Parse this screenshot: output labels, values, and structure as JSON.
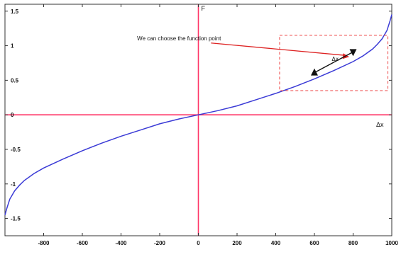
{
  "chart_data": {
    "type": "line",
    "title": "",
    "xlabel": "",
    "ylabel": "",
    "xlim": [
      -1000,
      1000
    ],
    "ylim": [
      -1.75,
      1.6
    ],
    "xticks": [
      -800,
      -600,
      -400,
      -200,
      0,
      200,
      400,
      600,
      800,
      1000
    ],
    "xtick_labels": [
      "-800",
      "-600",
      "-400",
      "-200",
      "0",
      "200",
      "400",
      "600",
      "800",
      "1000"
    ],
    "yticks": [
      -1.5,
      -1,
      -0.5,
      0,
      0.5,
      1,
      1.5
    ],
    "ytick_labels": [
      "-1.5",
      "-1",
      "-0.5",
      "0",
      "0.5",
      "1",
      "1.5"
    ],
    "grid": false,
    "series": [
      {
        "name": "",
        "color": "#3b3bd6",
        "x": [
          -1000,
          -990,
          -975,
          -950,
          -925,
          -900,
          -850,
          -800,
          -700,
          -600,
          -500,
          -400,
          -300,
          -200,
          -100,
          0,
          100,
          200,
          300,
          400,
          500,
          600,
          700,
          800,
          850,
          900,
          925,
          950,
          975,
          990,
          1000
        ],
        "y": [
          -1.45,
          -1.35,
          -1.22,
          -1.1,
          -1.02,
          -0.95,
          -0.85,
          -0.77,
          -0.64,
          -0.52,
          -0.41,
          -0.31,
          -0.22,
          -0.13,
          -0.06,
          0,
          0.06,
          0.13,
          0.22,
          0.31,
          0.41,
          0.52,
          0.64,
          0.77,
          0.85,
          0.95,
          1.02,
          1.1,
          1.22,
          1.35,
          1.45
        ]
      }
    ],
    "reference_lines": {
      "color": "#ff3366",
      "vertical_x": 0,
      "horizontal_y": 0,
      "vertical_label": "F",
      "horizontal_label": "Δx"
    },
    "annotations": {
      "text": "We can choose the function point",
      "text_x": -100,
      "text_y": 1.08,
      "arrow_color": "#dd2222",
      "arrow_to_x": 780,
      "arrow_to_y": 0.84,
      "box_color": "#ee4444",
      "box_x": [
        420,
        980
      ],
      "box_y": [
        0.35,
        1.15
      ],
      "segment_label": "Δx",
      "segment_label_x": 690,
      "segment_label_y": 0.78,
      "marker_points": [
        {
          "x": 600,
          "y": 0.61,
          "shape": "up-triangle"
        },
        {
          "x": 800,
          "y": 0.91,
          "shape": "down-triangle"
        }
      ]
    }
  }
}
